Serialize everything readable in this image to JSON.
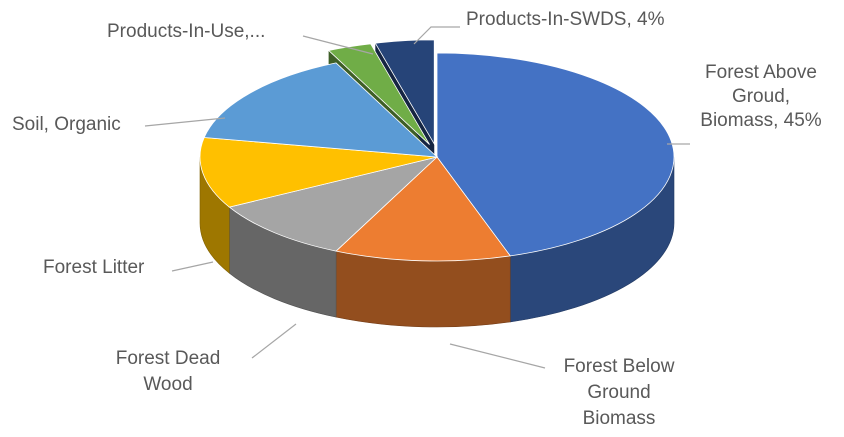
{
  "chart_data": {
    "type": "pie",
    "title": "",
    "style": "3d-exploded",
    "legend": "none",
    "slices": [
      {
        "label": "Forest Above Groud, Biomass",
        "display_label": [
          "Forest Above",
          "Groud,",
          "Biomass, 45%"
        ],
        "value": 45,
        "color": "#4472c4",
        "exploded": false
      },
      {
        "label": "Forest Below Ground Biomass",
        "display_label": [
          "Forest Below",
          "Ground",
          "Biomass"
        ],
        "value": 12,
        "color": "#ed7d31",
        "exploded": false
      },
      {
        "label": "Forest Dead Wood",
        "display_label": [
          "Forest Dead",
          "Wood"
        ],
        "value": 10,
        "color": "#a5a5a5",
        "exploded": false
      },
      {
        "label": "Forest Litter",
        "display_label": [
          "Forest Litter"
        ],
        "value": 11,
        "color": "#ffc000",
        "exploded": false
      },
      {
        "label": "Soil, Organic",
        "display_label": [
          "Soil, Organic"
        ],
        "value": 15,
        "color": "#5b9bd5",
        "exploded": false
      },
      {
        "label": "Products-In-Use",
        "display_label": [
          "Products-In-Use,..."
        ],
        "value": 3,
        "color": "#70ad47",
        "exploded": true
      },
      {
        "label": "Products-In-SWDS",
        "display_label": [
          "Products-In-SWDS, 4%"
        ],
        "value": 4,
        "color": "#264478",
        "exploded": true
      }
    ]
  }
}
